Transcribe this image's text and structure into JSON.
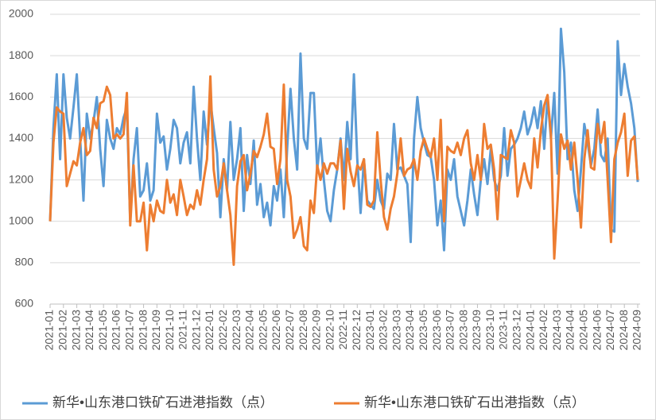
{
  "chart_data": {
    "type": "line",
    "categories": [
      "2021-01",
      null,
      null,
      null,
      "2021-02",
      null,
      null,
      null,
      "2021-03",
      null,
      null,
      null,
      "2021-04",
      null,
      null,
      null,
      "2021-05",
      null,
      null,
      null,
      "2021-06",
      null,
      null,
      null,
      "2021-07",
      null,
      null,
      null,
      "2021-08",
      null,
      null,
      null,
      "2021-09",
      null,
      null,
      null,
      "2021-10",
      null,
      null,
      null,
      "2021-11",
      null,
      null,
      null,
      "2021-12",
      null,
      null,
      null,
      "2022-01",
      null,
      null,
      null,
      "2022-02",
      null,
      null,
      null,
      "2022-03",
      null,
      null,
      null,
      "2022-04",
      null,
      null,
      null,
      "2022-05",
      null,
      null,
      null,
      "2022-06",
      null,
      null,
      null,
      "2022-07",
      null,
      null,
      null,
      "2022-08",
      null,
      null,
      null,
      "2022-09",
      null,
      null,
      null,
      "2022-10",
      null,
      null,
      null,
      "2022-11",
      null,
      null,
      null,
      "2022-12",
      null,
      null,
      null,
      "2023-01",
      null,
      null,
      null,
      "2023-02",
      null,
      null,
      null,
      "2023-03",
      null,
      null,
      null,
      "2023-04",
      null,
      null,
      null,
      "2023-05",
      null,
      null,
      null,
      "2023-06",
      null,
      null,
      null,
      "2023-07",
      null,
      null,
      null,
      "2023-08",
      null,
      null,
      null,
      "2023-09",
      null,
      null,
      null,
      "2023-10",
      null,
      null,
      null,
      "2023-11",
      null,
      null,
      null,
      "2023-12",
      null,
      null,
      null,
      "2024-01",
      null,
      null,
      null,
      "2024-02",
      null,
      null,
      null,
      "2024-03",
      null,
      null,
      null,
      "2024-04",
      null,
      null,
      null,
      "2024-05",
      null,
      null,
      null,
      "2024-06",
      null,
      null,
      null,
      "2024-07",
      null,
      null,
      null,
      "2024-08",
      null,
      null,
      null,
      "2024-09"
    ],
    "series": [
      {
        "name": "新华•山东港口铁矿石进港指数（点）",
        "color": "#5b9bd5",
        "values": [
          1000,
          1450,
          1710,
          1300,
          1710,
          1500,
          1400,
          1550,
          1710,
          1400,
          1100,
          1520,
          1400,
          1480,
          1600,
          1350,
          1170,
          1490,
          1400,
          1350,
          1450,
          1420,
          1500,
          1550,
          1000,
          1300,
          1450,
          1120,
          1150,
          1280,
          1100,
          1150,
          1520,
          1380,
          1410,
          1250,
          1350,
          1490,
          1450,
          1280,
          1380,
          1430,
          1280,
          1650,
          1400,
          1200,
          1530,
          1370,
          1580,
          1450,
          1330,
          1020,
          1300,
          1150,
          1480,
          1200,
          1300,
          1450,
          1050,
          1320,
          1180,
          1390,
          1080,
          1180,
          1020,
          1090,
          980,
          1170,
          1100,
          1250,
          1020,
          1350,
          1640,
          1400,
          1250,
          1810,
          1400,
          1350,
          1620,
          1620,
          1250,
          1400,
          1200,
          1050,
          1000,
          1150,
          1250,
          1400,
          1200,
          1480,
          1300,
          1710,
          1300,
          1040,
          1300,
          1100,
          1080,
          1060,
          1200,
          1100,
          1060,
          1230,
          1200,
          1470,
          1250,
          1260,
          1220,
          1180,
          900,
          1400,
          1600,
          1450,
          1380,
          1320,
          1310,
          1200,
          980,
          1100,
          860,
          1250,
          1200,
          1300,
          1120,
          1050,
          980,
          1100,
          1250,
          1130,
          1030,
          1200,
          1300,
          1180,
          1350,
          1200,
          1150,
          1220,
          1450,
          1220,
          1350,
          1370,
          1400,
          1450,
          1530,
          1420,
          1470,
          1550,
          1450,
          1580,
          1350,
          1600,
          1400,
          1620,
          1230,
          1930,
          1720,
          1300,
          1380,
          1150,
          1050,
          1250,
          1470,
          1380,
          1270,
          1350,
          1540,
          1320,
          1290,
          1400,
          960,
          950,
          1870,
          1610,
          1760,
          1650,
          1570,
          1450,
          1190
        ]
      },
      {
        "name": "新华•山东港口铁矿石出港指数（点）",
        "color": "#ed7d31",
        "values": [
          1000,
          1380,
          1550,
          1530,
          1520,
          1170,
          1230,
          1290,
          1270,
          1380,
          1450,
          1320,
          1340,
          1500,
          1450,
          1570,
          1580,
          1650,
          1610,
          1400,
          1420,
          1400,
          1420,
          1620,
          980,
          1270,
          1000,
          1000,
          1090,
          860,
          1080,
          1000,
          1100,
          1050,
          1040,
          1200,
          1090,
          1130,
          1030,
          1200,
          1120,
          1030,
          1080,
          1060,
          1150,
          1080,
          1200,
          1300,
          1700,
          1250,
          1120,
          1170,
          1280,
          1150,
          1030,
          790,
          1170,
          1290,
          1320,
          1150,
          1230,
          1340,
          1310,
          1360,
          1420,
          1520,
          1360,
          1350,
          1180,
          1300,
          1660,
          1200,
          1120,
          920,
          960,
          1020,
          880,
          860,
          1100,
          1040,
          1270,
          1200,
          1280,
          1230,
          1280,
          1280,
          1250,
          1390,
          1060,
          1350,
          1240,
          1170,
          1270,
          1250,
          1300,
          1080,
          1070,
          1100,
          1430,
          1200,
          1020,
          960,
          1060,
          1120,
          1230,
          1400,
          1220,
          1250,
          1260,
          1300,
          1200,
          1340,
          1400,
          1350,
          1310,
          1400,
          1200,
          1490,
          1000,
          1360,
          1340,
          1330,
          1380,
          1320,
          1400,
          1440,
          1280,
          1200,
          1320,
          1200,
          1470,
          1350,
          1370,
          1250,
          1010,
          1320,
          1310,
          1300,
          1440,
          1380,
          1120,
          1200,
          1280,
          1200,
          1160,
          1400,
          1260,
          1440,
          1560,
          1610,
          1420,
          820,
          1100,
          1420,
          1350,
          1390,
          1250,
          1380,
          1200,
          970,
          1300,
          1440,
          1260,
          1250,
          1470,
          1380,
          1480,
          1200,
          900,
          1300,
          1380,
          1430,
          1520,
          1220,
          1390,
          1410,
          1200
        ]
      }
    ],
    "ylim": [
      600,
      2000
    ],
    "yticks": [
      600,
      800,
      1000,
      1200,
      1400,
      1600,
      1800,
      2000
    ],
    "grid": true
  }
}
